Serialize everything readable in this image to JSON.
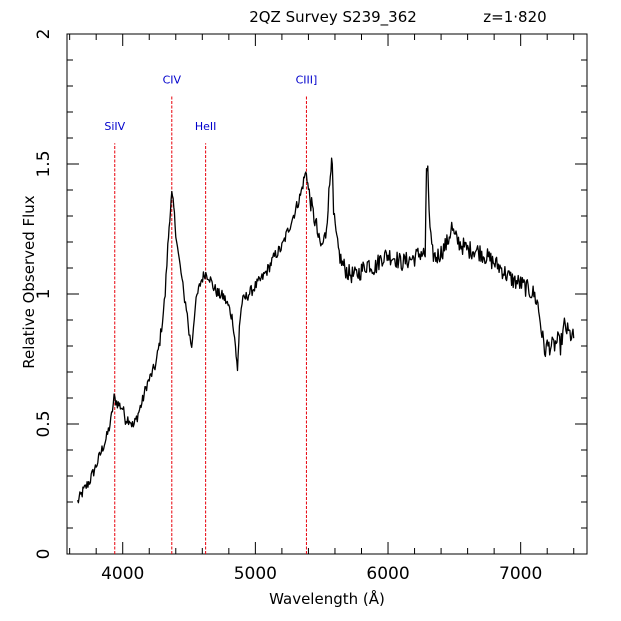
{
  "chart_data": {
    "type": "line",
    "title": "2QZ Survey S239_362",
    "redshift_label": "z=1·820",
    "xlabel": "Wavelength (Å)",
    "ylabel": "Relative Observed Flux",
    "xlim": [
      3580,
      7500
    ],
    "ylim": [
      0,
      2
    ],
    "xticks": [
      {
        "value": 4000,
        "label": "4000"
      },
      {
        "value": 5000,
        "label": "5000"
      },
      {
        "value": 6000,
        "label": "6000"
      },
      {
        "value": 7000,
        "label": "7000"
      }
    ],
    "yticks": [
      {
        "value": 0,
        "label": "0"
      },
      {
        "value": 0.5,
        "label": "0.5"
      },
      {
        "value": 1,
        "label": "1"
      },
      {
        "value": 1.5,
        "label": "1.5"
      },
      {
        "value": 2,
        "label": "2"
      }
    ],
    "grid": false,
    "emission_lines": [
      {
        "name": "SiIV",
        "wavelength": 3940,
        "top": 1.58,
        "label_y": 1.63
      },
      {
        "name": "CIV",
        "wavelength": 4370,
        "top": 1.76,
        "label_y": 1.81
      },
      {
        "name": "HeII",
        "wavelength": 4625,
        "top": 1.58,
        "label_y": 1.63
      },
      {
        "name": "CIII]",
        "wavelength": 5385,
        "top": 1.76,
        "label_y": 1.81
      }
    ],
    "line_color": "#e8000b",
    "label_color": "#0000cc",
    "series": [
      {
        "points": [
          [
            3660,
            0.2
          ],
          [
            3700,
            0.24
          ],
          [
            3750,
            0.28
          ],
          [
            3800,
            0.34
          ],
          [
            3850,
            0.41
          ],
          [
            3880,
            0.45
          ],
          [
            3910,
            0.51
          ],
          [
            3935,
            0.6
          ],
          [
            3960,
            0.58
          ],
          [
            4000,
            0.56
          ],
          [
            4020,
            0.52
          ],
          [
            4050,
            0.52
          ],
          [
            4080,
            0.49
          ],
          [
            4110,
            0.53
          ],
          [
            4150,
            0.59
          ],
          [
            4180,
            0.65
          ],
          [
            4200,
            0.67
          ],
          [
            4250,
            0.73
          ],
          [
            4280,
            0.82
          ],
          [
            4300,
            0.9
          ],
          [
            4320,
            1.0
          ],
          [
            4340,
            1.18
          ],
          [
            4355,
            1.3
          ],
          [
            4370,
            1.38
          ],
          [
            4385,
            1.33
          ],
          [
            4400,
            1.24
          ],
          [
            4420,
            1.15
          ],
          [
            4440,
            1.08
          ],
          [
            4460,
            1.0
          ],
          [
            4480,
            0.95
          ],
          [
            4500,
            0.85
          ],
          [
            4520,
            0.8
          ],
          [
            4540,
            0.92
          ],
          [
            4560,
            0.99
          ],
          [
            4590,
            1.05
          ],
          [
            4620,
            1.08
          ],
          [
            4650,
            1.07
          ],
          [
            4680,
            1.03
          ],
          [
            4720,
            1.0
          ],
          [
            4760,
            0.99
          ],
          [
            4800,
            0.95
          ],
          [
            4830,
            0.9
          ],
          [
            4850,
            0.8
          ],
          [
            4865,
            0.7
          ],
          [
            4880,
            0.88
          ],
          [
            4900,
            0.97
          ],
          [
            4950,
            1.0
          ],
          [
            5000,
            1.03
          ],
          [
            5050,
            1.06
          ],
          [
            5100,
            1.1
          ],
          [
            5150,
            1.15
          ],
          [
            5200,
            1.18
          ],
          [
            5250,
            1.25
          ],
          [
            5300,
            1.32
          ],
          [
            5340,
            1.38
          ],
          [
            5370,
            1.45
          ],
          [
            5385,
            1.47
          ],
          [
            5400,
            1.4
          ],
          [
            5430,
            1.32
          ],
          [
            5460,
            1.26
          ],
          [
            5480,
            1.2
          ],
          [
            5500,
            1.18
          ],
          [
            5530,
            1.23
          ],
          [
            5560,
            1.42
          ],
          [
            5575,
            1.55
          ],
          [
            5590,
            1.3
          ],
          [
            5620,
            1.18
          ],
          [
            5650,
            1.12
          ],
          [
            5700,
            1.08
          ],
          [
            5750,
            1.07
          ],
          [
            5800,
            1.09
          ],
          [
            5850,
            1.12
          ],
          [
            5900,
            1.1
          ],
          [
            5950,
            1.14
          ],
          [
            6000,
            1.15
          ],
          [
            6050,
            1.14
          ],
          [
            6100,
            1.12
          ],
          [
            6150,
            1.13
          ],
          [
            6200,
            1.14
          ],
          [
            6250,
            1.16
          ],
          [
            6280,
            1.15
          ],
          [
            6290,
            1.45
          ],
          [
            6300,
            1.5
          ],
          [
            6310,
            1.3
          ],
          [
            6330,
            1.16
          ],
          [
            6360,
            1.14
          ],
          [
            6400,
            1.16
          ],
          [
            6450,
            1.2
          ],
          [
            6480,
            1.26
          ],
          [
            6500,
            1.22
          ],
          [
            6550,
            1.19
          ],
          [
            6600,
            1.17
          ],
          [
            6650,
            1.17
          ],
          [
            6700,
            1.16
          ],
          [
            6750,
            1.14
          ],
          [
            6800,
            1.12
          ],
          [
            6850,
            1.1
          ],
          [
            6900,
            1.07
          ],
          [
            6950,
            1.05
          ],
          [
            7000,
            1.04
          ],
          [
            7050,
            1.02
          ],
          [
            7100,
            1.0
          ],
          [
            7130,
            0.96
          ],
          [
            7160,
            0.85
          ],
          [
            7180,
            0.78
          ],
          [
            7200,
            0.8
          ],
          [
            7250,
            0.8
          ],
          [
            7280,
            0.82
          ],
          [
            7300,
            0.8
          ],
          [
            7330,
            0.88
          ],
          [
            7360,
            0.85
          ],
          [
            7400,
            0.83
          ]
        ]
      }
    ]
  }
}
